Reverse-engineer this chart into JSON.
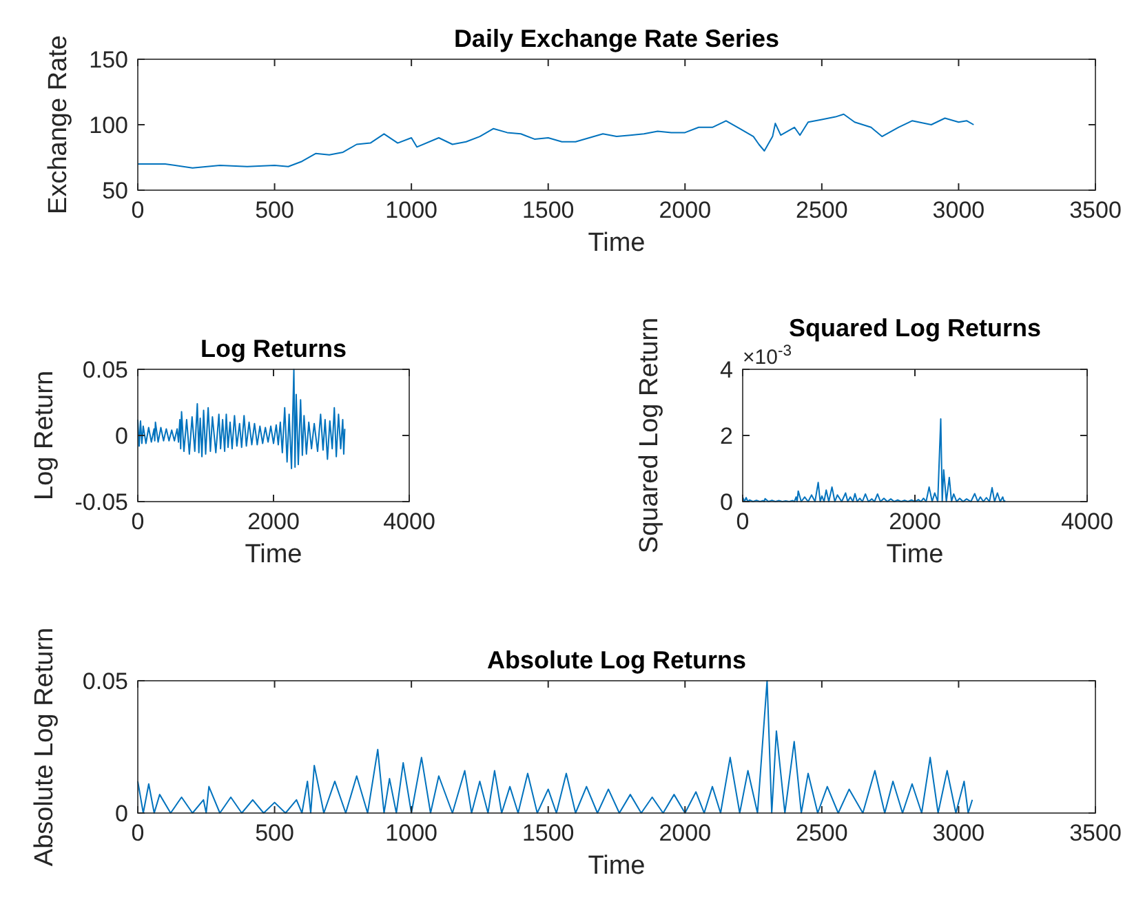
{
  "chart_data": [
    {
      "type": "line",
      "title": "Daily Exchange Rate Series",
      "xlabel": "Time",
      "ylabel": "Exchange Rate",
      "color": "#0072bd",
      "xlim": [
        0,
        3500
      ],
      "ylim": [
        50,
        150
      ],
      "xticks": [
        0,
        500,
        1000,
        1500,
        2000,
        2500,
        3000,
        3500
      ],
      "yticks": [
        50,
        100,
        150
      ],
      "x": [
        0,
        100,
        200,
        300,
        400,
        500,
        550,
        600,
        650,
        700,
        750,
        800,
        850,
        900,
        950,
        1000,
        1020,
        1100,
        1150,
        1200,
        1250,
        1300,
        1350,
        1400,
        1450,
        1500,
        1550,
        1600,
        1650,
        1700,
        1750,
        1800,
        1850,
        1900,
        1950,
        2000,
        2050,
        2100,
        2150,
        2200,
        2250,
        2270,
        2290,
        2320,
        2330,
        2350,
        2400,
        2420,
        2450,
        2500,
        2550,
        2580,
        2620,
        2680,
        2720,
        2780,
        2830,
        2900,
        2950,
        3000,
        3030,
        3055
      ],
      "values": [
        70,
        70,
        67,
        69,
        68,
        69,
        68,
        72,
        78,
        77,
        79,
        85,
        86,
        93,
        86,
        90,
        83,
        90,
        85,
        87,
        91,
        97,
        94,
        93,
        89,
        90,
        87,
        87,
        90,
        93,
        91,
        92,
        93,
        95,
        94,
        94,
        98,
        98,
        103,
        97,
        91,
        85,
        80,
        91,
        101,
        92,
        98,
        92,
        102,
        104,
        106,
        108,
        102,
        98,
        91,
        98,
        103,
        100,
        105,
        102,
        103,
        100
      ]
    },
    {
      "type": "line",
      "title": "Log Returns",
      "xlabel": "Time",
      "ylabel": "Log Return",
      "color": "#0072bd",
      "xlim": [
        0,
        4000
      ],
      "ylim": [
        -0.05,
        0.05
      ],
      "xticks": [
        0,
        2000,
        4000
      ],
      "yticks": [
        -0.05,
        0,
        0.05
      ],
      "x": [
        0,
        20,
        40,
        60,
        80,
        120,
        160,
        200,
        240,
        250,
        260,
        300,
        340,
        380,
        420,
        460,
        500,
        540,
        580,
        600,
        620,
        632,
        645,
        680,
        720,
        760,
        800,
        840,
        877,
        900,
        920,
        945,
        970,
        1000,
        1037,
        1070,
        1100,
        1150,
        1195,
        1220,
        1250,
        1280,
        1304,
        1330,
        1360,
        1390,
        1425,
        1460,
        1500,
        1530,
        1566,
        1600,
        1640,
        1680,
        1720,
        1760,
        1800,
        1840,
        1880,
        1920,
        1960,
        2000,
        2040,
        2070,
        2100,
        2130,
        2165,
        2200,
        2230,
        2265,
        2300,
        2317,
        2334,
        2365,
        2399,
        2425,
        2450,
        2485,
        2520,
        2560,
        2600,
        2650,
        2694,
        2730,
        2760,
        2795,
        2830,
        2865,
        2896,
        2925,
        2958,
        2990,
        3020,
        3035,
        3050
      ],
      "values": [
        0.012,
        -0.008,
        0.011,
        -0.006,
        0.007,
        -0.006,
        0.006,
        -0.005,
        0.005,
        -0.004,
        0.01,
        -0.005,
        0.006,
        -0.004,
        0.005,
        -0.004,
        0.004,
        -0.004,
        0.005,
        -0.005,
        0.012,
        -0.01,
        0.018,
        -0.012,
        0.012,
        -0.014,
        0.014,
        -0.012,
        0.024,
        -0.013,
        0.013,
        -0.016,
        0.019,
        -0.014,
        0.021,
        -0.012,
        0.014,
        -0.013,
        0.016,
        -0.01,
        0.012,
        -0.012,
        0.016,
        -0.009,
        0.01,
        -0.01,
        0.015,
        -0.008,
        0.009,
        -0.009,
        0.015,
        -0.008,
        0.01,
        -0.007,
        0.009,
        -0.007,
        0.007,
        -0.006,
        0.006,
        -0.005,
        0.007,
        -0.006,
        0.008,
        -0.007,
        0.01,
        -0.013,
        0.021,
        -0.02,
        0.016,
        -0.025,
        0.05,
        -0.024,
        0.031,
        -0.022,
        0.027,
        -0.015,
        0.015,
        -0.014,
        0.01,
        -0.01,
        0.009,
        -0.012,
        0.016,
        -0.011,
        0.012,
        -0.018,
        0.011,
        -0.01,
        0.021,
        -0.016,
        0.016,
        -0.01,
        0.012,
        -0.014,
        0.005
      ]
    },
    {
      "type": "line",
      "title": "Squared Log Returns",
      "xlabel": "Time",
      "ylabel": "Squared Log Return",
      "color": "#0072bd",
      "xlim": [
        0,
        4000
      ],
      "ylim": [
        0,
        4
      ],
      "xticks": [
        0,
        2000,
        4000
      ],
      "yticks": [
        0,
        2,
        4
      ],
      "annotations": [
        "×10$^{-3}$"
      ],
      "x": [
        0,
        20,
        40,
        60,
        80,
        120,
        160,
        200,
        240,
        250,
        260,
        300,
        340,
        380,
        420,
        460,
        500,
        540,
        580,
        600,
        620,
        632,
        645,
        680,
        720,
        760,
        800,
        840,
        877,
        900,
        920,
        945,
        970,
        1000,
        1037,
        1070,
        1100,
        1150,
        1195,
        1220,
        1250,
        1280,
        1304,
        1330,
        1360,
        1390,
        1425,
        1460,
        1500,
        1530,
        1566,
        1600,
        1640,
        1680,
        1720,
        1760,
        1800,
        1840,
        1880,
        1920,
        1960,
        2000,
        2040,
        2070,
        2100,
        2130,
        2165,
        2200,
        2230,
        2265,
        2300,
        2317,
        2334,
        2365,
        2399,
        2425,
        2450,
        2485,
        2520,
        2560,
        2600,
        2650,
        2694,
        2730,
        2760,
        2795,
        2830,
        2865,
        2896,
        2925,
        2958,
        2990,
        3020,
        3035,
        3050
      ],
      "values": [
        0.14,
        0,
        0.12,
        0,
        0.05,
        0,
        0.04,
        0,
        0.03,
        0,
        0.09,
        0,
        0.04,
        0,
        0.03,
        0,
        0.02,
        0,
        0.03,
        0,
        0.14,
        0,
        0.32,
        0,
        0.14,
        0,
        0.2,
        0,
        0.58,
        0,
        0.17,
        0,
        0.35,
        0,
        0.44,
        0,
        0.2,
        0,
        0.26,
        0,
        0.14,
        0,
        0.24,
        0,
        0.1,
        0,
        0.23,
        0,
        0.08,
        0,
        0.23,
        0,
        0.1,
        0,
        0.08,
        0,
        0.05,
        0,
        0.04,
        0,
        0.05,
        0,
        0.06,
        0,
        0.1,
        0,
        0.44,
        0,
        0.26,
        0,
        2.5,
        0,
        0.96,
        0,
        0.73,
        0,
        0.23,
        0,
        0.1,
        0,
        0.08,
        0,
        0.24,
        0,
        0.14,
        0,
        0.12,
        0,
        0.42,
        0,
        0.26,
        0,
        0.14,
        0,
        0.03
      ]
    },
    {
      "type": "line",
      "title": "Absolute Log Returns",
      "xlabel": "Time",
      "ylabel": "Absolute Log Return",
      "color": "#0072bd",
      "xlim": [
        0,
        3500
      ],
      "ylim": [
        0,
        0.05
      ],
      "xticks": [
        0,
        500,
        1000,
        1500,
        2000,
        2500,
        3000,
        3500
      ],
      "yticks": [
        0,
        0.05
      ],
      "x": [
        0,
        20,
        40,
        60,
        80,
        120,
        160,
        200,
        240,
        250,
        260,
        300,
        340,
        380,
        420,
        460,
        500,
        540,
        580,
        600,
        620,
        632,
        645,
        680,
        720,
        760,
        800,
        840,
        877,
        900,
        920,
        945,
        970,
        1000,
        1037,
        1070,
        1100,
        1150,
        1195,
        1220,
        1250,
        1280,
        1304,
        1330,
        1360,
        1390,
        1425,
        1460,
        1500,
        1530,
        1566,
        1600,
        1640,
        1680,
        1720,
        1760,
        1800,
        1840,
        1880,
        1920,
        1960,
        2000,
        2040,
        2070,
        2100,
        2130,
        2165,
        2200,
        2230,
        2265,
        2300,
        2317,
        2334,
        2365,
        2399,
        2425,
        2450,
        2485,
        2520,
        2560,
        2600,
        2650,
        2694,
        2730,
        2760,
        2795,
        2830,
        2865,
        2896,
        2925,
        2958,
        2990,
        3020,
        3035,
        3050
      ],
      "values": [
        0.012,
        0,
        0.011,
        0,
        0.007,
        0,
        0.006,
        0,
        0.005,
        0,
        0.01,
        0,
        0.006,
        0,
        0.005,
        0,
        0.004,
        0,
        0.005,
        0,
        0.012,
        0,
        0.018,
        0,
        0.012,
        0,
        0.014,
        0,
        0.024,
        0,
        0.013,
        0,
        0.019,
        0,
        0.021,
        0,
        0.014,
        0,
        0.016,
        0,
        0.012,
        0,
        0.016,
        0,
        0.01,
        0,
        0.015,
        0,
        0.009,
        0,
        0.015,
        0,
        0.01,
        0,
        0.009,
        0,
        0.007,
        0,
        0.006,
        0,
        0.007,
        0,
        0.008,
        0,
        0.01,
        0,
        0.021,
        0,
        0.016,
        0,
        0.05,
        0,
        0.031,
        0,
        0.027,
        0,
        0.015,
        0,
        0.01,
        0,
        0.009,
        0,
        0.016,
        0,
        0.012,
        0,
        0.011,
        0,
        0.021,
        0,
        0.016,
        0,
        0.012,
        0,
        0.005
      ]
    }
  ]
}
